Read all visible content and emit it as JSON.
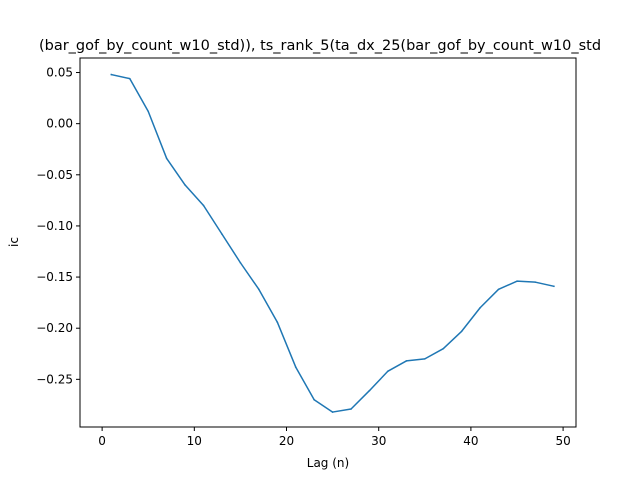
{
  "chart_data": {
    "type": "line",
    "title": "(bar_gof_by_count_w10_std)), ts_rank_5(ta_dx_25(bar_gof_by_count_w10_std",
    "xlabel": "Lag (n)",
    "ylabel": "ic",
    "xlim": [
      -2.4,
      51.4
    ],
    "ylim": [
      -0.2966,
      0.0642
    ],
    "xticks": [
      0,
      10,
      20,
      30,
      40,
      50
    ],
    "yticks": [
      0.05,
      0.0,
      -0.05,
      -0.1,
      -0.15,
      -0.2,
      -0.25
    ],
    "xtick_labels": [
      "0",
      "10",
      "20",
      "30",
      "40",
      "50"
    ],
    "ytick_labels": [
      "0.05",
      "0.00",
      "−0.05",
      "−0.10",
      "−0.15",
      "−0.20",
      "−0.25"
    ],
    "grid": false,
    "series": [
      {
        "color": "#1f77b4",
        "x": [
          1,
          3,
          5,
          7,
          9,
          11,
          13,
          15,
          17,
          19,
          21,
          23,
          25,
          27,
          29,
          31,
          33,
          35,
          37,
          39,
          41,
          43,
          45,
          47,
          49
        ],
        "y": [
          0.048,
          0.044,
          0.012,
          -0.034,
          -0.06,
          -0.08,
          -0.108,
          -0.136,
          -0.162,
          -0.194,
          -0.238,
          -0.27,
          -0.282,
          -0.279,
          -0.261,
          -0.242,
          -0.232,
          -0.23,
          -0.22,
          -0.203,
          -0.18,
          -0.162,
          -0.154,
          -0.155,
          -0.159
        ]
      }
    ]
  }
}
